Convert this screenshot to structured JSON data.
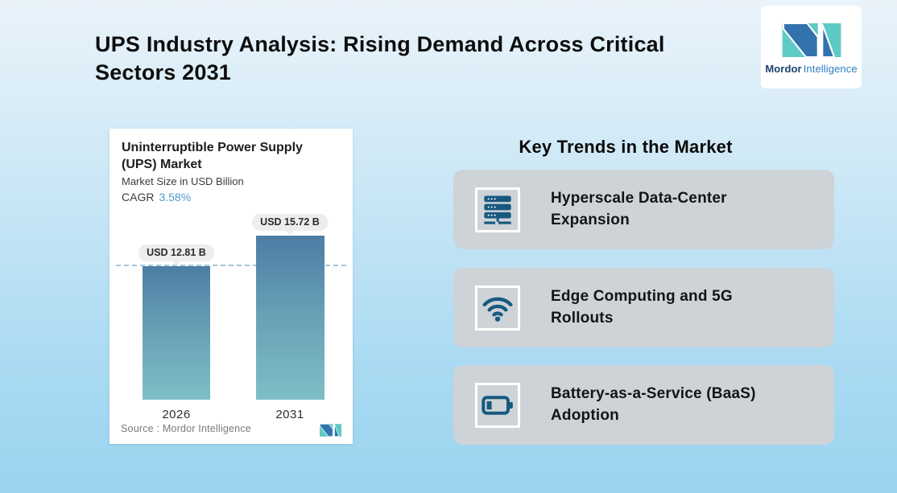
{
  "page": {
    "title": "UPS Industry Analysis: Rising Demand Across Critical Sectors 2031"
  },
  "brand": {
    "name_bold": "Mordor",
    "name_light": "Intelligence",
    "logo_icon": "mordor-intelligence-monogram-icon",
    "colors": {
      "teal": "#5ecac5",
      "blue": "#3273ae",
      "name_dark": "#1c3e70",
      "name_blue": "#2d7ec0"
    }
  },
  "chart_card": {
    "title": "Uninterruptible Power Supply (UPS) Market",
    "subtitle": "Market Size in USD Billion",
    "cagr_label": "CAGR",
    "cagr_value": "3.58%",
    "source": "Source :  Mordor Intelligence"
  },
  "chart_data": {
    "type": "bar",
    "title": "Uninterruptible Power Supply (UPS) Market",
    "subtitle": "Market Size in USD Billion",
    "cagr": "3.58%",
    "categories": [
      "2026",
      "2031"
    ],
    "values": [
      12.81,
      15.72
    ],
    "value_labels": [
      "USD 12.81 B",
      "USD 15.72 B"
    ],
    "unit": "USD Billion",
    "ylim": [
      0,
      16
    ],
    "grid": false,
    "legend": "none",
    "bar_gradient": [
      "#4d7da4",
      "#7fbec7"
    ],
    "reference_line": {
      "y": 12.81,
      "style": "dashed",
      "color": "#a4c6d8"
    },
    "source": "Source :  Mordor Intelligence"
  },
  "key_trends": {
    "heading": "Key Trends in the Market",
    "card_color": "#ced3d7",
    "icon_color": "#17597f",
    "items": [
      {
        "icon": "server-rack-icon",
        "label": "Hyperscale Data-Center Expansion"
      },
      {
        "icon": "wifi-icon",
        "label": "Edge Computing and 5G Rollouts"
      },
      {
        "icon": "battery-icon",
        "label": "Battery-as-a-Service (BaaS) Adoption"
      }
    ]
  },
  "colors": {
    "background_top": "#eaf3fa",
    "background_bottom": "#9bd3ef",
    "card_white": "#ffffff",
    "badge_bg": "#eceeec",
    "cagr_blue": "#4e9bcd"
  }
}
